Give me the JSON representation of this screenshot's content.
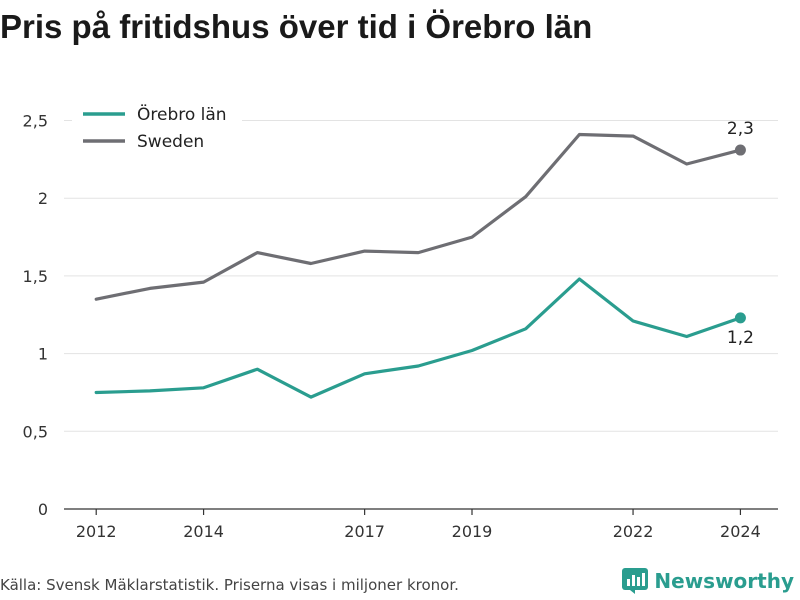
{
  "title": "Pris på fritidshus över tid i Örebro län",
  "source": "Källa: Svensk Mäklarstatistik. Priserna visas i miljoner kronor.",
  "brand": {
    "name": "Newsworthy",
    "icon": "newsworthy-logo-icon",
    "color": "#2a9d8f"
  },
  "chart_data": {
    "type": "line",
    "title": "Pris på fritidshus över tid i Örebro län",
    "xlabel": "",
    "ylabel": "",
    "x": [
      2012,
      2013,
      2014,
      2015,
      2016,
      2017,
      2018,
      2019,
      2020,
      2021,
      2022,
      2023,
      2024
    ],
    "x_ticks": [
      2012,
      2014,
      2017,
      2019,
      2022,
      2024
    ],
    "x_tick_labels": [
      "2012",
      "2014",
      "2017",
      "2019",
      "2022",
      "2024"
    ],
    "ylim": [
      0,
      2.6
    ],
    "y_ticks": [
      0,
      0.5,
      1,
      1.5,
      2,
      2.5
    ],
    "y_tick_labels": [
      "0",
      "0,5",
      "1",
      "1,5",
      "2",
      "2,5"
    ],
    "grid": true,
    "legend_position": "top-left",
    "series": [
      {
        "name": "Örebro län",
        "color": "#2a9d8f",
        "values": [
          0.75,
          0.76,
          0.78,
          0.9,
          0.72,
          0.87,
          0.92,
          1.02,
          1.16,
          1.48,
          1.21,
          1.11,
          1.23
        ],
        "end_label": "1,2"
      },
      {
        "name": "Sweden",
        "color": "#6e6e73",
        "values": [
          1.35,
          1.42,
          1.46,
          1.65,
          1.58,
          1.66,
          1.65,
          1.75,
          2.01,
          2.41,
          2.4,
          2.22,
          2.31
        ],
        "end_label": "2,3"
      }
    ]
  }
}
